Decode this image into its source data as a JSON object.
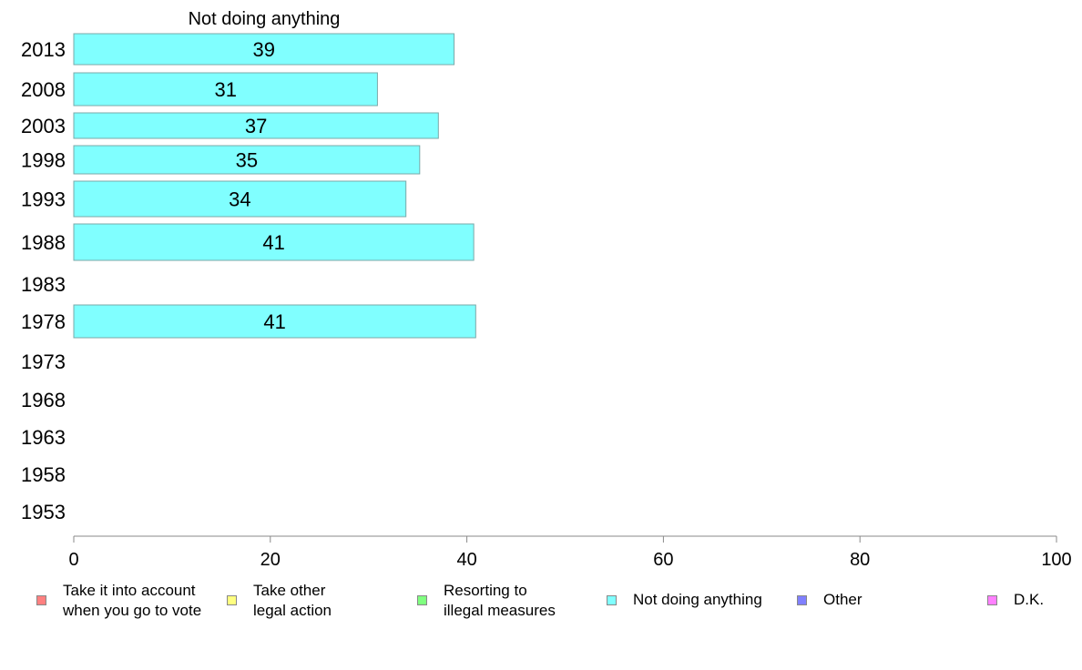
{
  "chart_data": {
    "type": "bar",
    "orientation": "horizontal",
    "title": "Not doing anything",
    "categories": [
      "2013",
      "2008",
      "2003",
      "1998",
      "1993",
      "1988",
      "1983",
      "1978",
      "1973",
      "1968",
      "1963",
      "1958",
      "1953"
    ],
    "values": [
      38.7,
      30.9,
      37.1,
      35.2,
      33.8,
      40.7,
      null,
      40.9,
      null,
      null,
      null,
      null,
      null
    ],
    "data_labels": [
      "39",
      "31",
      "37",
      "35",
      "34",
      "41",
      "",
      "41",
      "",
      "",
      "",
      "",
      ""
    ],
    "bar_color": "#80ffff",
    "bar_edge_color": "#7aa8a8",
    "xlim": [
      0,
      100
    ],
    "xticks": [
      "0",
      "20",
      "40",
      "60",
      "80",
      "100"
    ],
    "grid": false,
    "legend_position": "bottom",
    "legend": [
      {
        "label": "Take it into account\nwhen you go to vote",
        "color": "#ff8080"
      },
      {
        "label": "Take other\nlegal action",
        "color": "#ffff80"
      },
      {
        "label": "Resorting to\nillegal measures",
        "color": "#80ff80"
      },
      {
        "label": "Not doing anything",
        "color": "#80ffff"
      },
      {
        "label": "Other",
        "color": "#8080ff"
      },
      {
        "label": "D.K.",
        "color": "#ff80ff"
      }
    ]
  }
}
